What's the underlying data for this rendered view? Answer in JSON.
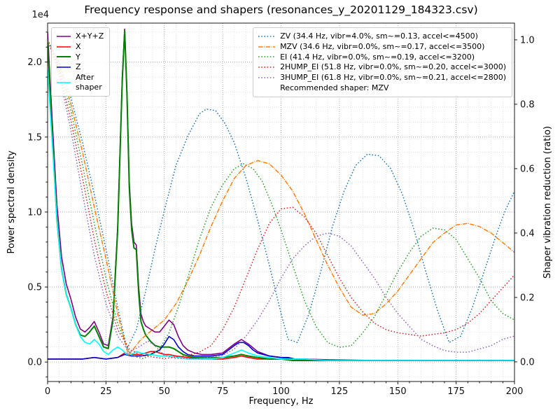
{
  "chart_data": {
    "type": "line",
    "title": "Frequency response and shapers (resonances_y_20201129_184323.csv)",
    "xlabel": "Frequency, Hz",
    "ylabel_left": "Power spectral density",
    "ylabel_right": "Shaper vibration reduction (ratio)",
    "y_left_offset_label": "1e4",
    "xlim": [
      0,
      200
    ],
    "ylim_left": [
      -0.13,
      2.26
    ],
    "ylim_right": [
      -0.061,
      1.052
    ],
    "x_ticks": [
      0,
      25,
      50,
      75,
      100,
      125,
      150,
      175,
      200
    ],
    "x_tick_labels": [
      "0",
      "25",
      "50",
      "75",
      "100",
      "125",
      "150",
      "175",
      "200"
    ],
    "y_ticks_left": [
      0,
      0.5,
      1,
      1.5,
      2
    ],
    "y_tick_labels_left": [
      "0.0",
      "0.5",
      "1.0",
      "1.5",
      "2.0"
    ],
    "y_ticks_right": [
      0,
      0.2,
      0.4,
      0.6,
      0.8,
      1
    ],
    "y_tick_labels_right": [
      "0.0",
      "0.2",
      "0.4",
      "0.6",
      "0.8",
      "1.0"
    ],
    "grid": {
      "major": true,
      "minor": true,
      "major_color": "#9a9a9a",
      "minor_color": "#d9d9d9"
    },
    "series": [
      {
        "name": "X+Y+Z",
        "axis": "left",
        "color": "#800080",
        "dash": "solid",
        "width": 1.6,
        "x": [
          0,
          2,
          4,
          6,
          8,
          10,
          12,
          14,
          16,
          18,
          20,
          22,
          24,
          26,
          28,
          30,
          31,
          32,
          33,
          34,
          35,
          36,
          37,
          38,
          39,
          40,
          41,
          42,
          44,
          46,
          48,
          50,
          52,
          54,
          56,
          58,
          60,
          63,
          66,
          70,
          75,
          80,
          83,
          86,
          90,
          95,
          100,
          105,
          110,
          120,
          140,
          160,
          180,
          200
        ],
        "y": [
          2.2,
          1.6,
          1.05,
          0.7,
          0.52,
          0.42,
          0.3,
          0.22,
          0.2,
          0.23,
          0.27,
          0.2,
          0.12,
          0.11,
          0.3,
          0.9,
          1.4,
          1.9,
          2.22,
          1.8,
          1.2,
          0.92,
          0.8,
          0.78,
          0.5,
          0.32,
          0.27,
          0.24,
          0.22,
          0.2,
          0.2,
          0.24,
          0.28,
          0.25,
          0.17,
          0.11,
          0.08,
          0.06,
          0.05,
          0.05,
          0.06,
          0.12,
          0.15,
          0.12,
          0.07,
          0.04,
          0.03,
          0.02,
          0.02,
          0.015,
          0.01,
          0.01,
          0.01,
          0.01
        ]
      },
      {
        "name": "X",
        "axis": "left",
        "color": "#ff0000",
        "dash": "solid",
        "width": 1.6,
        "x": [
          0,
          5,
          10,
          15,
          20,
          25,
          30,
          33,
          35,
          38,
          40,
          42,
          44,
          46,
          48,
          50,
          52,
          55,
          60,
          65,
          70,
          75,
          80,
          83,
          86,
          90,
          95,
          100,
          105,
          110,
          120,
          140,
          160,
          180,
          200
        ],
        "y": [
          0.02,
          0.02,
          0.02,
          0.02,
          0.03,
          0.02,
          0.03,
          0.06,
          0.05,
          0.05,
          0.05,
          0.06,
          0.07,
          0.07,
          0.06,
          0.05,
          0.05,
          0.04,
          0.03,
          0.02,
          0.02,
          0.02,
          0.03,
          0.04,
          0.03,
          0.02,
          0.02,
          0.02,
          0.01,
          0.01,
          0.01,
          0.01,
          0.01,
          0.01,
          0.01
        ]
      },
      {
        "name": "Y",
        "axis": "left",
        "color": "#008000",
        "dash": "solid",
        "width": 2,
        "x": [
          0,
          2,
          4,
          6,
          8,
          10,
          12,
          14,
          16,
          18,
          20,
          22,
          24,
          26,
          28,
          30,
          31,
          32,
          33,
          34,
          35,
          36,
          37,
          38,
          39,
          40,
          41,
          42,
          44,
          46,
          48,
          50,
          52,
          54,
          56,
          58,
          60,
          63,
          66,
          70,
          75,
          80,
          83,
          86,
          90,
          95,
          100,
          105,
          110,
          120,
          140,
          160,
          180,
          200
        ],
        "y": [
          2.15,
          1.5,
          0.95,
          0.62,
          0.45,
          0.36,
          0.25,
          0.18,
          0.17,
          0.2,
          0.24,
          0.17,
          0.1,
          0.09,
          0.28,
          0.88,
          1.38,
          1.88,
          2.21,
          1.78,
          1.16,
          0.88,
          0.76,
          0.75,
          0.46,
          0.27,
          0.22,
          0.18,
          0.14,
          0.11,
          0.1,
          0.1,
          0.1,
          0.09,
          0.07,
          0.05,
          0.04,
          0.03,
          0.03,
          0.03,
          0.03,
          0.04,
          0.05,
          0.04,
          0.03,
          0.02,
          0.02,
          0.01,
          0.01,
          0.01,
          0.01,
          0.01,
          0.01,
          0.01
        ]
      },
      {
        "name": "Z",
        "axis": "left",
        "color": "#0000cd",
        "dash": "solid",
        "width": 1.6,
        "x": [
          0,
          5,
          10,
          15,
          20,
          25,
          30,
          33,
          36,
          40,
          44,
          48,
          50,
          52,
          54,
          56,
          58,
          60,
          63,
          66,
          70,
          75,
          80,
          82,
          84,
          86,
          88,
          90,
          95,
          100,
          103,
          106,
          110,
          120,
          140,
          160,
          180,
          200
        ],
        "y": [
          0.02,
          0.02,
          0.02,
          0.02,
          0.03,
          0.02,
          0.03,
          0.05,
          0.04,
          0.04,
          0.05,
          0.08,
          0.12,
          0.17,
          0.15,
          0.1,
          0.07,
          0.05,
          0.04,
          0.04,
          0.04,
          0.05,
          0.11,
          0.13,
          0.13,
          0.11,
          0.08,
          0.06,
          0.04,
          0.03,
          0.03,
          0.02,
          0.02,
          0.01,
          0.01,
          0.01,
          0.01,
          0.01
        ]
      },
      {
        "name": "After shaper",
        "axis": "left",
        "color": "#00ffff",
        "dash": "solid",
        "width": 1.6,
        "x": [
          0,
          2,
          4,
          6,
          8,
          10,
          12,
          14,
          16,
          18,
          20,
          22,
          24,
          26,
          28,
          30,
          32,
          34,
          36,
          38,
          40,
          44,
          48,
          52,
          56,
          60,
          65,
          70,
          75,
          80,
          83,
          86,
          90,
          95,
          100,
          110,
          120,
          140,
          160,
          180,
          200
        ],
        "y": [
          1.95,
          1.45,
          0.95,
          0.62,
          0.45,
          0.36,
          0.25,
          0.17,
          0.13,
          0.12,
          0.15,
          0.12,
          0.07,
          0.05,
          0.08,
          0.1,
          0.08,
          0.05,
          0.05,
          0.07,
          0.06,
          0.05,
          0.04,
          0.04,
          0.03,
          0.02,
          0.02,
          0.02,
          0.03,
          0.06,
          0.08,
          0.06,
          0.04,
          0.03,
          0.02,
          0.02,
          0.01,
          0.01,
          0.01,
          0.01,
          0.01
        ]
      },
      {
        "name": "ZV",
        "axis": "right",
        "color": "#1f77b4",
        "dash": "dotted",
        "width": 1.5,
        "x": [
          0,
          5,
          10,
          15,
          20,
          25,
          30,
          34,
          38,
          42,
          46,
          50,
          55,
          60,
          65,
          68,
          72,
          76,
          80,
          85,
          90,
          95,
          100,
          103,
          107,
          112,
          117,
          122,
          127,
          132,
          137,
          142,
          147,
          152,
          157,
          162,
          167,
          172,
          177,
          182,
          187,
          192,
          196,
          200
        ],
        "y": [
          1.0,
          0.93,
          0.82,
          0.68,
          0.52,
          0.35,
          0.17,
          0.04,
          0.1,
          0.22,
          0.35,
          0.47,
          0.61,
          0.7,
          0.77,
          0.785,
          0.78,
          0.74,
          0.68,
          0.57,
          0.44,
          0.3,
          0.15,
          0.07,
          0.06,
          0.15,
          0.28,
          0.42,
          0.53,
          0.61,
          0.645,
          0.64,
          0.6,
          0.52,
          0.41,
          0.28,
          0.16,
          0.06,
          0.08,
          0.17,
          0.28,
          0.39,
          0.47,
          0.53
        ]
      },
      {
        "name": "MZV",
        "axis": "right",
        "color": "#ff7f0e",
        "dash": "dashdot",
        "width": 1.5,
        "x": [
          0,
          5,
          10,
          15,
          20,
          25,
          30,
          34.6,
          40,
          45,
          50,
          55,
          60,
          65,
          70,
          75,
          80,
          85,
          90,
          95,
          100,
          105,
          110,
          115,
          120,
          125,
          130,
          135,
          140,
          145,
          150,
          155,
          160,
          165,
          170,
          175,
          180,
          185,
          190,
          195,
          200
        ],
        "y": [
          1.0,
          0.92,
          0.8,
          0.65,
          0.48,
          0.32,
          0.15,
          0.02,
          0.07,
          0.1,
          0.13,
          0.18,
          0.25,
          0.33,
          0.42,
          0.5,
          0.57,
          0.61,
          0.625,
          0.615,
          0.58,
          0.53,
          0.46,
          0.38,
          0.3,
          0.23,
          0.17,
          0.145,
          0.15,
          0.18,
          0.22,
          0.27,
          0.32,
          0.37,
          0.4,
          0.425,
          0.43,
          0.42,
          0.4,
          0.37,
          0.34
        ]
      },
      {
        "name": "EI",
        "axis": "right",
        "color": "#2ca02c",
        "dash": "dotted",
        "width": 1.5,
        "x": [
          0,
          5,
          10,
          15,
          20,
          25,
          30,
          35,
          38,
          41,
          44,
          48,
          52,
          56,
          60,
          65,
          70,
          75,
          80,
          84,
          88,
          92,
          96,
          100,
          105,
          110,
          115,
          120,
          125,
          130,
          135,
          140,
          145,
          150,
          155,
          160,
          165,
          170,
          175,
          180,
          185,
          190,
          195,
          200
        ],
        "y": [
          1.0,
          0.91,
          0.78,
          0.61,
          0.43,
          0.26,
          0.12,
          0.03,
          0.015,
          0.01,
          0.02,
          0.04,
          0.09,
          0.17,
          0.26,
          0.38,
          0.48,
          0.55,
          0.6,
          0.615,
          0.6,
          0.56,
          0.49,
          0.41,
          0.3,
          0.19,
          0.11,
          0.06,
          0.045,
          0.05,
          0.09,
          0.14,
          0.21,
          0.28,
          0.34,
          0.39,
          0.415,
          0.41,
          0.38,
          0.32,
          0.26,
          0.19,
          0.15,
          0.13
        ]
      },
      {
        "name": "2HUMP_EI",
        "axis": "right",
        "color": "#d62728",
        "dash": "dotted",
        "width": 1.5,
        "x": [
          0,
          5,
          10,
          15,
          20,
          25,
          30,
          35,
          40,
          45,
          50,
          55,
          60,
          65,
          70,
          75,
          80,
          85,
          90,
          95,
          100,
          105,
          110,
          115,
          120,
          125,
          130,
          135,
          140,
          145,
          150,
          155,
          160,
          165,
          170,
          175,
          180,
          185,
          190,
          195,
          200
        ],
        "y": [
          1.0,
          0.9,
          0.75,
          0.57,
          0.38,
          0.22,
          0.1,
          0.04,
          0.02,
          0.015,
          0.01,
          0.015,
          0.02,
          0.03,
          0.05,
          0.1,
          0.17,
          0.26,
          0.35,
          0.43,
          0.475,
          0.48,
          0.45,
          0.4,
          0.33,
          0.26,
          0.2,
          0.155,
          0.12,
          0.1,
          0.09,
          0.085,
          0.08,
          0.085,
          0.09,
          0.1,
          0.12,
          0.15,
          0.19,
          0.23,
          0.27
        ]
      },
      {
        "name": "3HUMP_EI",
        "axis": "right",
        "color": "#9467bd",
        "dash": "dotted",
        "width": 1.5,
        "x": [
          0,
          5,
          10,
          15,
          20,
          25,
          30,
          35,
          40,
          43,
          46,
          50,
          55,
          60,
          65,
          70,
          75,
          80,
          85,
          90,
          95,
          100,
          105,
          110,
          115,
          120,
          125,
          130,
          135,
          140,
          145,
          150,
          155,
          160,
          165,
          170,
          175,
          180,
          185,
          190,
          195,
          200
        ],
        "y": [
          1.0,
          0.89,
          0.72,
          0.52,
          0.33,
          0.18,
          0.08,
          0.03,
          0.05,
          0.065,
          0.05,
          0.02,
          0.01,
          0.01,
          0.01,
          0.015,
          0.02,
          0.04,
          0.08,
          0.13,
          0.19,
          0.26,
          0.32,
          0.36,
          0.39,
          0.4,
          0.39,
          0.36,
          0.31,
          0.26,
          0.2,
          0.15,
          0.11,
          0.07,
          0.05,
          0.035,
          0.03,
          0.03,
          0.04,
          0.05,
          0.07,
          0.08
        ]
      }
    ]
  },
  "legend_left": {
    "items": [
      {
        "label": "X+Y+Z",
        "series": "X+Y+Z"
      },
      {
        "label": "X",
        "series": "X"
      },
      {
        "label": "Y",
        "series": "Y"
      },
      {
        "label": "Z",
        "series": "Z"
      },
      {
        "label": "After\nshaper",
        "series": "After shaper"
      }
    ]
  },
  "legend_right": {
    "items": [
      {
        "label": "ZV (34.4 Hz, vibr=4.0%, sm~=0.13, accel<=4500)",
        "series": "ZV"
      },
      {
        "label": "MZV (34.6 Hz, vibr=0.0%, sm~=0.17, accel<=3500)",
        "series": "MZV"
      },
      {
        "label": "EI (41.4 Hz, vibr=0.0%, sm~=0.19, accel<=3200)",
        "series": "EI"
      },
      {
        "label": "2HUMP_EI (51.8 Hz, vibr=0.0%, sm~=0.20, accel<=3000)",
        "series": "2HUMP_EI"
      },
      {
        "label": "3HUMP_EI (61.8 Hz, vibr=0.0%, sm~=0.21, accel<=2800)",
        "series": "3HUMP_EI"
      }
    ],
    "note": "Recommended shaper: MZV"
  }
}
